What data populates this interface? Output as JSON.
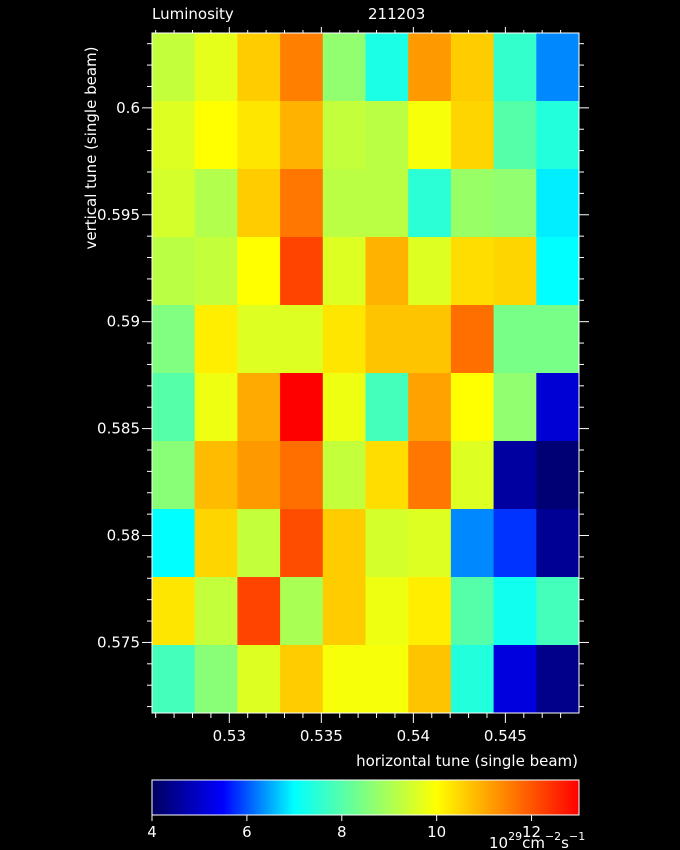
{
  "chart_data": {
    "type": "heatmap",
    "title": "Luminosity",
    "subtitle": "211203",
    "xlabel": "horizontal tune (single beam)",
    "ylabel": "vertical tune (single beam)",
    "x": [
      0.52696,
      0.52928,
      0.5316,
      0.53392,
      0.53624,
      0.53856,
      0.54088,
      0.5432,
      0.54552,
      0.54784
    ],
    "y": [
      0.60191,
      0.59873,
      0.59555,
      0.59237,
      0.58919,
      0.58601,
      0.58283,
      0.57965,
      0.57647,
      0.57329
    ],
    "values": [
      [
        9.3,
        9.7,
        10.6,
        11.5,
        8.7,
        7.3,
        11.2,
        10.6,
        7.6,
        6.3
      ],
      [
        9.6,
        10.0,
        10.3,
        10.9,
        9.3,
        9.2,
        9.9,
        10.5,
        8.0,
        7.4
      ],
      [
        9.5,
        9.1,
        10.6,
        11.6,
        9.2,
        9.2,
        7.5,
        8.8,
        8.7,
        6.9
      ],
      [
        9.2,
        9.3,
        10.0,
        12.2,
        9.6,
        10.9,
        9.6,
        10.4,
        10.5,
        7.0
      ],
      [
        8.5,
        10.2,
        9.6,
        9.6,
        10.3,
        10.7,
        10.7,
        11.7,
        8.4,
        8.4
      ],
      [
        8.0,
        9.8,
        11.0,
        13.0,
        9.8,
        7.8,
        11.1,
        10.0,
        8.7,
        5.1
      ],
      [
        8.6,
        10.8,
        11.2,
        11.7,
        9.3,
        10.4,
        11.6,
        9.6,
        4.6,
        4.2
      ],
      [
        7.0,
        10.5,
        9.3,
        12.1,
        10.6,
        9.5,
        9.6,
        6.3,
        5.8,
        4.5
      ],
      [
        10.3,
        9.3,
        12.2,
        9.0,
        10.6,
        9.8,
        10.2,
        8.0,
        7.2,
        7.8
      ],
      [
        7.8,
        8.6,
        9.6,
        10.6,
        9.9,
        9.9,
        10.7,
        7.4,
        5.2,
        4.4
      ]
    ],
    "xlim": [
      0.5258,
      0.549
    ],
    "ylim": [
      0.5717,
      0.6035
    ],
    "xticks": [
      0.53,
      0.535,
      0.54,
      0.545
    ],
    "yticks": [
      0.575,
      0.58,
      0.585,
      0.59,
      0.595,
      0.6
    ],
    "xticks_minor": [
      0.526,
      0.527,
      0.528,
      0.529,
      0.531,
      0.532,
      0.533,
      0.534,
      0.536,
      0.537,
      0.538,
      0.539,
      0.541,
      0.542,
      0.543,
      0.544,
      0.546,
      0.547,
      0.548
    ],
    "yticks_minor": [
      0.572,
      0.573,
      0.574,
      0.576,
      0.577,
      0.578,
      0.579,
      0.581,
      0.582,
      0.583,
      0.584,
      0.586,
      0.587,
      0.588,
      0.589,
      0.591,
      0.592,
      0.593,
      0.594,
      0.596,
      0.597,
      0.598,
      0.599,
      0.601,
      0.602,
      0.603
    ],
    "colormap": [
      "#000060",
      "#0000ff",
      "#00ffff",
      "#80ff80",
      "#ffff00",
      "#ff8000",
      "#ff0000"
    ],
    "clim": [
      4,
      13
    ],
    "cticks": [
      4,
      6,
      8,
      10,
      12
    ],
    "colorbar_unit": [
      "10",
      "29",
      "cm",
      "−2",
      "s",
      "−1"
    ]
  }
}
